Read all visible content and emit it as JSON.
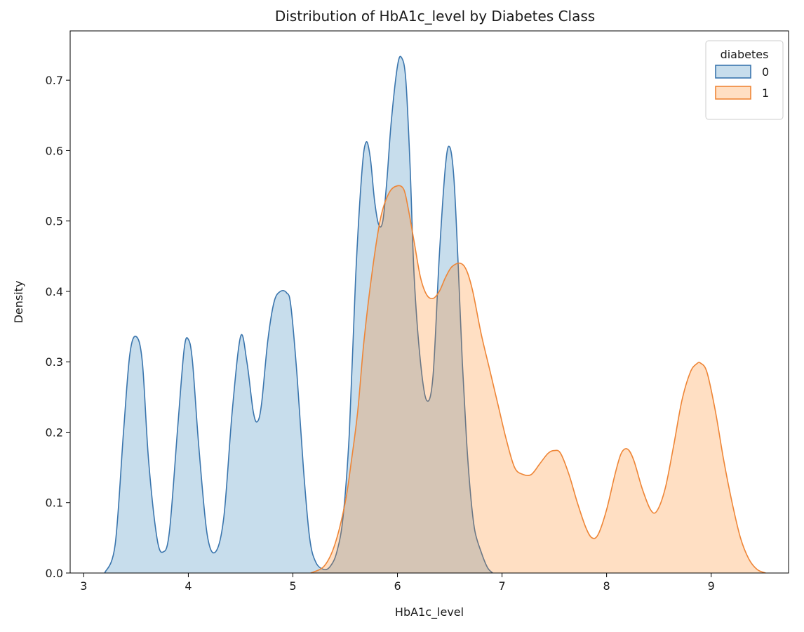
{
  "chart_data": {
    "type": "area",
    "title": "Distribution of HbA1c_level by Diabetes Class",
    "xlabel": "HbA1c_level",
    "ylabel": "Density",
    "xlim": [
      2.87,
      9.74
    ],
    "ylim": [
      0,
      0.77
    ],
    "xticks": [
      3,
      4,
      5,
      6,
      7,
      8,
      9
    ],
    "yticks": [
      0.0,
      0.1,
      0.2,
      0.3,
      0.4,
      0.5,
      0.6,
      0.7
    ],
    "ytick_labels": [
      "0.0",
      "0.1",
      "0.2",
      "0.3",
      "0.4",
      "0.5",
      "0.6",
      "0.7"
    ],
    "grid": false,
    "legend": {
      "title": "diabetes",
      "placement": "top-right"
    },
    "series": [
      {
        "name": "0",
        "line_color": "#3a75ad",
        "fill_color": "#1f77b4",
        "x": [
          3.2,
          3.3,
          3.38,
          3.44,
          3.5,
          3.56,
          3.62,
          3.7,
          3.76,
          3.82,
          3.9,
          3.96,
          4.0,
          4.04,
          4.1,
          4.18,
          4.26,
          4.34,
          4.42,
          4.5,
          4.56,
          4.62,
          4.66,
          4.7,
          4.76,
          4.82,
          4.88,
          4.94,
          4.98,
          5.04,
          5.1,
          5.16,
          5.22,
          5.3,
          5.36,
          5.42,
          5.48,
          5.54,
          5.6,
          5.66,
          5.7,
          5.74,
          5.78,
          5.82,
          5.86,
          5.9,
          5.94,
          6.0,
          6.04,
          6.08,
          6.12,
          6.16,
          6.22,
          6.28,
          6.34,
          6.4,
          6.46,
          6.5,
          6.54,
          6.58,
          6.62,
          6.66,
          6.7,
          6.74,
          6.8,
          6.86,
          6.91
        ],
        "y": [
          0.0,
          0.04,
          0.2,
          0.31,
          0.336,
          0.3,
          0.16,
          0.05,
          0.03,
          0.06,
          0.21,
          0.318,
          0.332,
          0.3,
          0.18,
          0.055,
          0.03,
          0.08,
          0.23,
          0.336,
          0.3,
          0.23,
          0.215,
          0.24,
          0.33,
          0.385,
          0.4,
          0.398,
          0.38,
          0.28,
          0.15,
          0.05,
          0.015,
          0.005,
          0.01,
          0.03,
          0.08,
          0.2,
          0.42,
          0.57,
          0.612,
          0.59,
          0.53,
          0.495,
          0.5,
          0.56,
          0.64,
          0.72,
          0.732,
          0.7,
          0.58,
          0.42,
          0.3,
          0.245,
          0.28,
          0.45,
          0.58,
          0.605,
          0.56,
          0.44,
          0.3,
          0.19,
          0.11,
          0.06,
          0.03,
          0.008,
          0.0
        ]
      },
      {
        "name": "1",
        "line_color": "#ee8536",
        "fill_color": "#ff7f0e",
        "x": [
          5.17,
          5.3,
          5.4,
          5.5,
          5.56,
          5.62,
          5.68,
          5.76,
          5.84,
          5.92,
          6.0,
          6.06,
          6.1,
          6.16,
          6.22,
          6.28,
          6.34,
          6.4,
          6.46,
          6.52,
          6.6,
          6.66,
          6.72,
          6.8,
          6.88,
          6.96,
          7.04,
          7.12,
          7.2,
          7.28,
          7.36,
          7.44,
          7.5,
          7.56,
          7.64,
          7.72,
          7.8,
          7.86,
          7.92,
          8.0,
          8.08,
          8.14,
          8.2,
          8.26,
          8.34,
          8.42,
          8.48,
          8.56,
          8.64,
          8.72,
          8.8,
          8.86,
          8.9,
          8.96,
          9.04,
          9.12,
          9.2,
          9.28,
          9.36,
          9.44,
          9.52
        ],
        "y": [
          0.0,
          0.01,
          0.04,
          0.1,
          0.16,
          0.23,
          0.33,
          0.43,
          0.505,
          0.54,
          0.55,
          0.545,
          0.52,
          0.47,
          0.42,
          0.395,
          0.39,
          0.4,
          0.42,
          0.435,
          0.44,
          0.43,
          0.4,
          0.34,
          0.29,
          0.24,
          0.19,
          0.15,
          0.14,
          0.14,
          0.155,
          0.17,
          0.174,
          0.17,
          0.14,
          0.1,
          0.065,
          0.05,
          0.055,
          0.09,
          0.14,
          0.17,
          0.176,
          0.16,
          0.12,
          0.09,
          0.088,
          0.12,
          0.18,
          0.245,
          0.285,
          0.297,
          0.298,
          0.285,
          0.23,
          0.16,
          0.1,
          0.05,
          0.02,
          0.005,
          0.0
        ]
      }
    ]
  }
}
